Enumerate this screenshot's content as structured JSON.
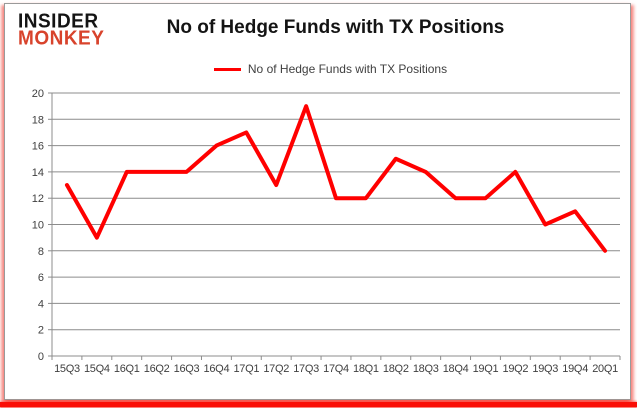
{
  "logo": {
    "top": "INSIDER",
    "bottom": "MONKEY"
  },
  "title": "No of Hedge Funds with TX Positions",
  "legend": {
    "label": "No of Hedge Funds with TX Positions",
    "color": "#ff0000"
  },
  "chart_data": {
    "type": "line",
    "title": "No of Hedge Funds with TX Positions",
    "categories": [
      "15Q3",
      "15Q4",
      "16Q1",
      "16Q2",
      "16Q3",
      "16Q4",
      "17Q1",
      "17Q2",
      "17Q3",
      "17Q4",
      "18Q1",
      "18Q2",
      "18Q3",
      "18Q4",
      "19Q1",
      "19Q2",
      "19Q3",
      "19Q4",
      "20Q1"
    ],
    "series": [
      {
        "name": "No of Hedge Funds with TX Positions",
        "color": "#ff0000",
        "values": [
          13,
          9,
          14,
          14,
          14,
          16,
          17,
          13,
          19,
          12,
          12,
          15,
          14,
          12,
          12,
          14,
          10,
          11,
          8
        ]
      }
    ],
    "ylim": [
      0,
      20
    ],
    "ytick_step": 2,
    "xlabel": "",
    "ylabel": "",
    "grid": true,
    "legend_position": "top-center",
    "styles": {
      "gridline_color": "#8c8c8c",
      "axis_text_color": "#404040",
      "line_width": 4
    }
  }
}
